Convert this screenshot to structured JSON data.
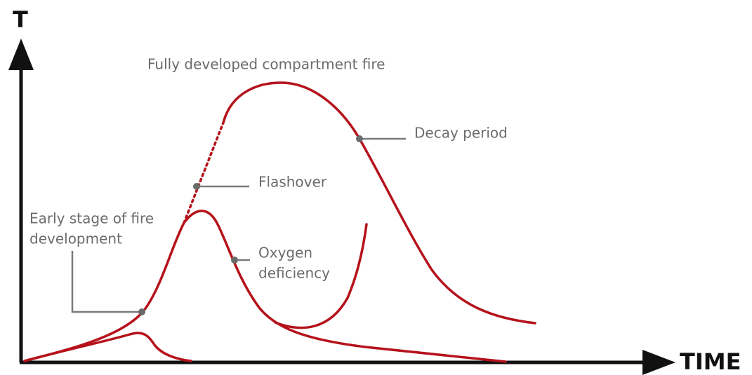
{
  "axes": {
    "y_label": "T",
    "x_label": "TIME"
  },
  "annotations": {
    "fully_developed": "Fully developed compartment fire",
    "decay": "Decay period",
    "flashover": "Flashover",
    "early_stage": [
      "Early stage of fire",
      "development"
    ],
    "oxygen": [
      "Oxygen",
      "deficiency"
    ]
  }
}
